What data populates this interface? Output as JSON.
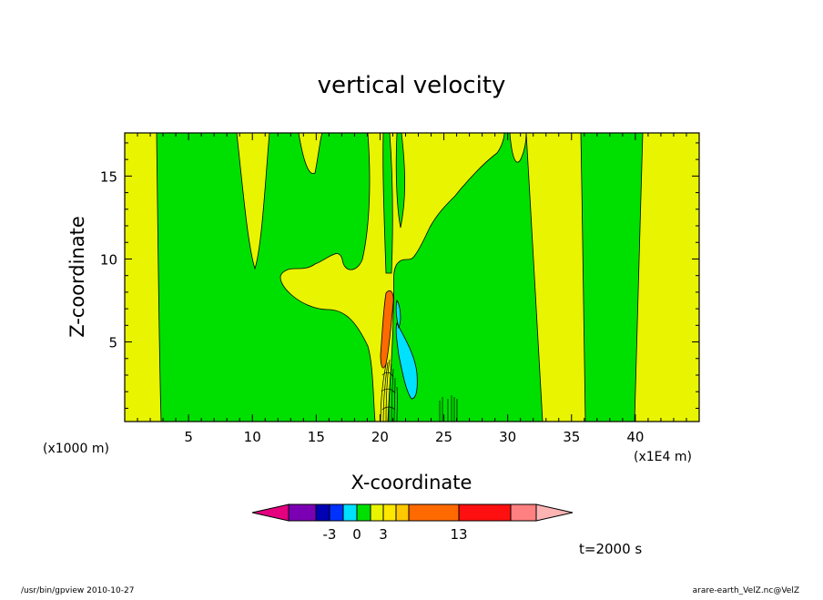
{
  "chart_data": {
    "type": "heatmap",
    "title": "vertical velocity",
    "xlabel": "X-coordinate",
    "ylabel": "Z-coordinate",
    "x_unit": "(x1000 m)",
    "x_note": "(x1E4 m)",
    "xlim": [
      0,
      45
    ],
    "ylim": [
      0.2,
      17.6
    ],
    "x_ticks": [
      {
        "value": 5,
        "label": "5"
      },
      {
        "value": 10,
        "label": "10"
      },
      {
        "value": 15,
        "label": "15"
      },
      {
        "value": 20,
        "label": "20"
      },
      {
        "value": 25,
        "label": "25"
      },
      {
        "value": 30,
        "label": "30"
      },
      {
        "value": 35,
        "label": "35"
      },
      {
        "value": 40,
        "label": "40"
      }
    ],
    "y_ticks": [
      {
        "value": 5,
        "label": "5"
      },
      {
        "value": 10,
        "label": "10"
      },
      {
        "value": 15,
        "label": "15"
      }
    ],
    "colorbar": {
      "colors": [
        "#e4007f",
        "#7b00b4",
        "#0000b4",
        "#0032ff",
        "#00e0ff",
        "#00e000",
        "#e8f400",
        "#ffe800",
        "#ffc800",
        "#ff6a00",
        "#ff1010",
        "#ff8080",
        "#ffb4b4"
      ],
      "tick_labels": [
        {
          "boundary": 3,
          "label": "-3"
        },
        {
          "boundary": 5,
          "label": "0"
        },
        {
          "boundary": 7,
          "label": "3"
        },
        {
          "boundary": 10,
          "label": "13"
        }
      ]
    },
    "time_label": "t=2000 s"
  },
  "footer": {
    "left": "/usr/bin/gpview   2010-10-27",
    "right": "arare-earth_VelZ.nc@VelZ"
  }
}
